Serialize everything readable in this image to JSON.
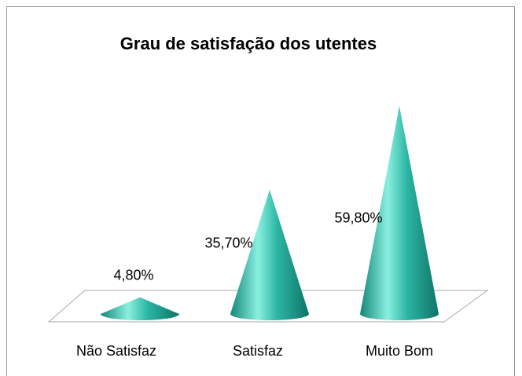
{
  "chart_data": {
    "type": "bar",
    "title": "Grau de satisfação dos utentes",
    "categories": [
      "Não Satisfaz",
      "Satisfaz",
      "Muito Bom"
    ],
    "values": [
      4.8,
      35.7,
      59.8
    ],
    "value_labels": [
      "4,80%",
      "35,70%",
      "59,80%"
    ],
    "color": "#2bb5a3"
  }
}
